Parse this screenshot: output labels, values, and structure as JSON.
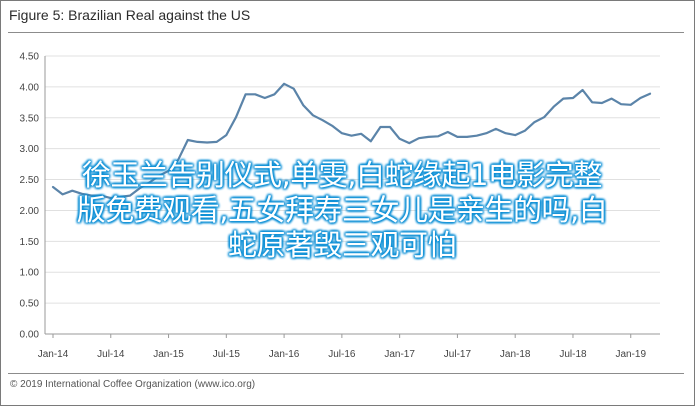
{
  "title": "Figure 5: Brazilian Real against the US",
  "footer": "© 2019 International Coffee Organization (www.ico.org)",
  "overlay": {
    "line1": "徐玉兰告别仪式,单雯,白蛇缘起1电影完整",
    "line2": "版免费观看,五女拜寿三女儿是亲生的吗,白",
    "line3": "蛇原著毁三观可怕"
  },
  "colors": {
    "line": "#5b84a9",
    "axis": "#9a9a9a",
    "grid": "#e0e0e0",
    "overlay_text": "#ffffff",
    "overlay_glow": "#0b8fd6"
  },
  "chart_data": {
    "type": "line",
    "ylim": [
      0.0,
      4.5
    ],
    "yticks": [
      "0.00",
      "0.50",
      "1.00",
      "1.50",
      "2.00",
      "2.50",
      "3.00",
      "3.50",
      "4.00",
      "4.50"
    ],
    "xticks": [
      "Jan-14",
      "Jul-14",
      "Jan-15",
      "Jul-15",
      "Jan-16",
      "Jul-16",
      "Jan-17",
      "Jul-17",
      "Jan-18",
      "Jul-18",
      "Jan-19"
    ],
    "grid": true,
    "series": [
      {
        "values": [
          2.38,
          2.26,
          2.32,
          2.27,
          2.24,
          2.24,
          2.2,
          2.22,
          2.24,
          2.36,
          2.45,
          2.56,
          2.64,
          2.82,
          3.14,
          3.11,
          3.1,
          3.11,
          3.22,
          3.51,
          3.88,
          3.88,
          3.82,
          3.88,
          4.05,
          3.97,
          3.7,
          3.54,
          3.46,
          3.37,
          3.25,
          3.21,
          3.24,
          3.12,
          3.35,
          3.35,
          3.16,
          3.09,
          3.17,
          3.19,
          3.2,
          3.27,
          3.19,
          3.19,
          3.21,
          3.25,
          3.32,
          3.25,
          3.22,
          3.29,
          3.43,
          3.51,
          3.68,
          3.81,
          3.82,
          3.95,
          3.75,
          3.74,
          3.81,
          3.72,
          3.71,
          3.82,
          3.89
        ]
      }
    ]
  }
}
